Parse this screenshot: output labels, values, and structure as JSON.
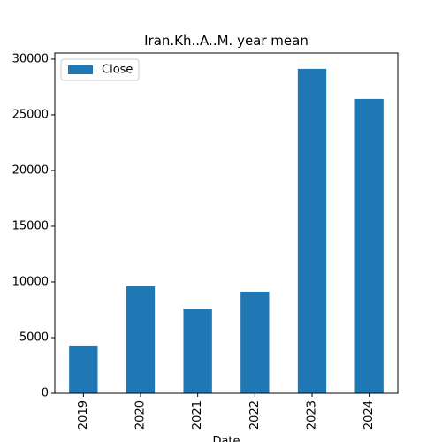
{
  "chart_data": {
    "type": "bar",
    "title": "Iran.Kh..A..M. year mean",
    "x_label": "Date",
    "categories": [
      "2019",
      "2020",
      "2021",
      "2022",
      "2023",
      "2024"
    ],
    "series": [
      {
        "name": "Close",
        "color": "#1f77b4",
        "values": [
          4290,
          9600,
          7620,
          9130,
          29130,
          26430
        ]
      }
    ],
    "ylim": [
      0,
      30550
    ],
    "yticks": [
      0,
      5000,
      10000,
      15000,
      20000,
      25000,
      30000
    ],
    "legend": "upper left"
  }
}
